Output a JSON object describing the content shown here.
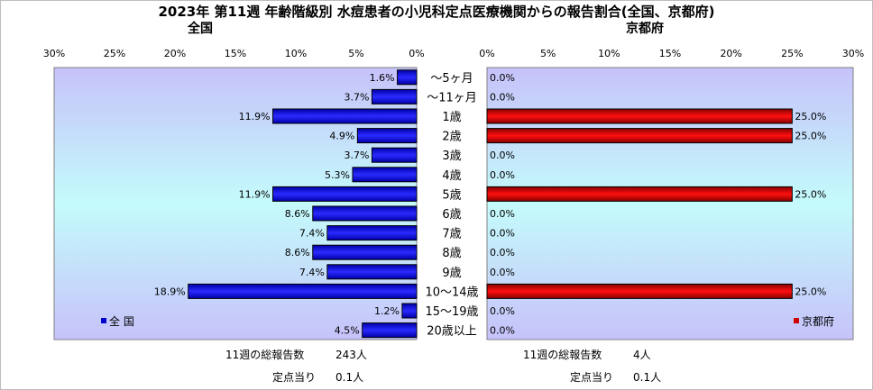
{
  "title": "2023年 第11週 年齢階級別 水痘患者の小児科定点医療機関からの報告割合(全国、京都府)",
  "chart_data": [
    {
      "type": "bar",
      "orientation": "horizontal",
      "title": "全国",
      "categories": [
        "～5ヶ月",
        "～11ヶ月",
        "1歳",
        "2歳",
        "3歳",
        "4歳",
        "5歳",
        "6歳",
        "7歳",
        "8歳",
        "9歳",
        "10～14歳",
        "15～19歳",
        "20歳以上"
      ],
      "series": [
        {
          "name": "全 国",
          "color": "#0000cc",
          "values": [
            1.6,
            3.7,
            11.9,
            4.9,
            3.7,
            5.3,
            11.9,
            8.6,
            7.4,
            8.6,
            7.4,
            18.9,
            1.2,
            4.5
          ],
          "labels": [
            "1.6%",
            "3.7%",
            "11.9%",
            "4.9%",
            "3.7%",
            "5.3%",
            "11.9%",
            "8.6%",
            "7.4%",
            "8.6%",
            "7.4%",
            "18.9%",
            "1.2%",
            "4.5%"
          ]
        }
      ],
      "xlim": [
        0,
        30
      ],
      "reversed": true,
      "tick_labels": [
        "30%",
        "25%",
        "20%",
        "15%",
        "10%",
        "5%",
        "0%"
      ],
      "legend_position": "bottom-left",
      "footer": [
        {
          "label": "11週の総報告数",
          "value": "243人"
        },
        {
          "label": "定点当り",
          "value": "0.1人"
        }
      ]
    },
    {
      "type": "bar",
      "orientation": "horizontal",
      "title": "京都府",
      "categories": [
        "～5ヶ月",
        "～11ヶ月",
        "1歳",
        "2歳",
        "3歳",
        "4歳",
        "5歳",
        "6歳",
        "7歳",
        "8歳",
        "9歳",
        "10～14歳",
        "15～19歳",
        "20歳以上"
      ],
      "series": [
        {
          "name": "京都府",
          "color": "#cc0000",
          "values": [
            0.0,
            0.0,
            25.0,
            25.0,
            0.0,
            0.0,
            25.0,
            0.0,
            0.0,
            0.0,
            0.0,
            25.0,
            0.0,
            0.0
          ],
          "labels": [
            "0.0%",
            "0.0%",
            "25.0%",
            "25.0%",
            "0.0%",
            "0.0%",
            "25.0%",
            "0.0%",
            "0.0%",
            "0.0%",
            "0.0%",
            "25.0%",
            "0.0%",
            "0.0%"
          ]
        }
      ],
      "xlim": [
        0,
        30
      ],
      "reversed": false,
      "tick_labels": [
        "0%",
        "5%",
        "10%",
        "15%",
        "20%",
        "25%",
        "30%"
      ],
      "legend_position": "bottom-right",
      "footer": [
        {
          "label": "11週の総報告数",
          "value": "4人"
        },
        {
          "label": "定点当り",
          "value": "0.1人"
        }
      ]
    }
  ]
}
